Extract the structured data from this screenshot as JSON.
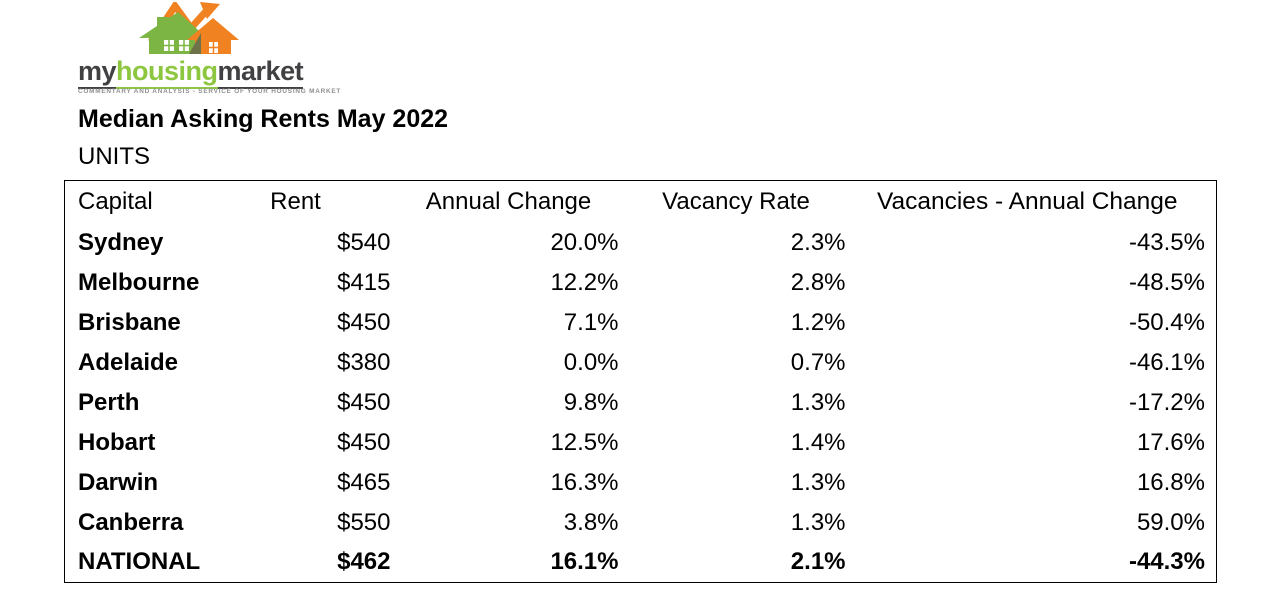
{
  "logo": {
    "wordmark": {
      "part1": "my",
      "part2": "housing",
      "part3": "market"
    },
    "tagline": "COMMENTARY AND ANALYSIS - SERVICE OF YOUR HOUSING MARKET",
    "colors": {
      "green": "#8DC63F",
      "house_green": "#7CB544",
      "orange": "#F08221",
      "dark": "#414042",
      "overlap": "#6E7248"
    }
  },
  "header": {
    "title": "Median Asking Rents May 2022",
    "subtitle": "UNITS"
  },
  "table": {
    "columns": [
      "Capital",
      "Rent",
      "Annual Change",
      "Vacancy Rate",
      "Vacancies - Annual Change"
    ],
    "rows": [
      {
        "capital": "Sydney",
        "rent": "$540",
        "annual_change": "20.0%",
        "vacancy_rate": "2.3%",
        "vacancies_annual_change": "-43.5%",
        "is_total": false
      },
      {
        "capital": "Melbourne",
        "rent": "$415",
        "annual_change": "12.2%",
        "vacancy_rate": "2.8%",
        "vacancies_annual_change": "-48.5%",
        "is_total": false
      },
      {
        "capital": "Brisbane",
        "rent": "$450",
        "annual_change": "7.1%",
        "vacancy_rate": "1.2%",
        "vacancies_annual_change": "-50.4%",
        "is_total": false
      },
      {
        "capital": "Adelaide",
        "rent": "$380",
        "annual_change": "0.0%",
        "vacancy_rate": "0.7%",
        "vacancies_annual_change": "-46.1%",
        "is_total": false
      },
      {
        "capital": "Perth",
        "rent": "$450",
        "annual_change": "9.8%",
        "vacancy_rate": "1.3%",
        "vacancies_annual_change": "-17.2%",
        "is_total": false
      },
      {
        "capital": "Hobart",
        "rent": "$450",
        "annual_change": "12.5%",
        "vacancy_rate": "1.4%",
        "vacancies_annual_change": "17.6%",
        "is_total": false
      },
      {
        "capital": "Darwin",
        "rent": "$465",
        "annual_change": "16.3%",
        "vacancy_rate": "1.3%",
        "vacancies_annual_change": "16.8%",
        "is_total": false
      },
      {
        "capital": "Canberra",
        "rent": "$550",
        "annual_change": "3.8%",
        "vacancy_rate": "1.3%",
        "vacancies_annual_change": "59.0%",
        "is_total": false
      },
      {
        "capital": "NATIONAL",
        "rent": "$462",
        "annual_change": "16.1%",
        "vacancy_rate": "2.1%",
        "vacancies_annual_change": "-44.3%",
        "is_total": true
      }
    ]
  }
}
